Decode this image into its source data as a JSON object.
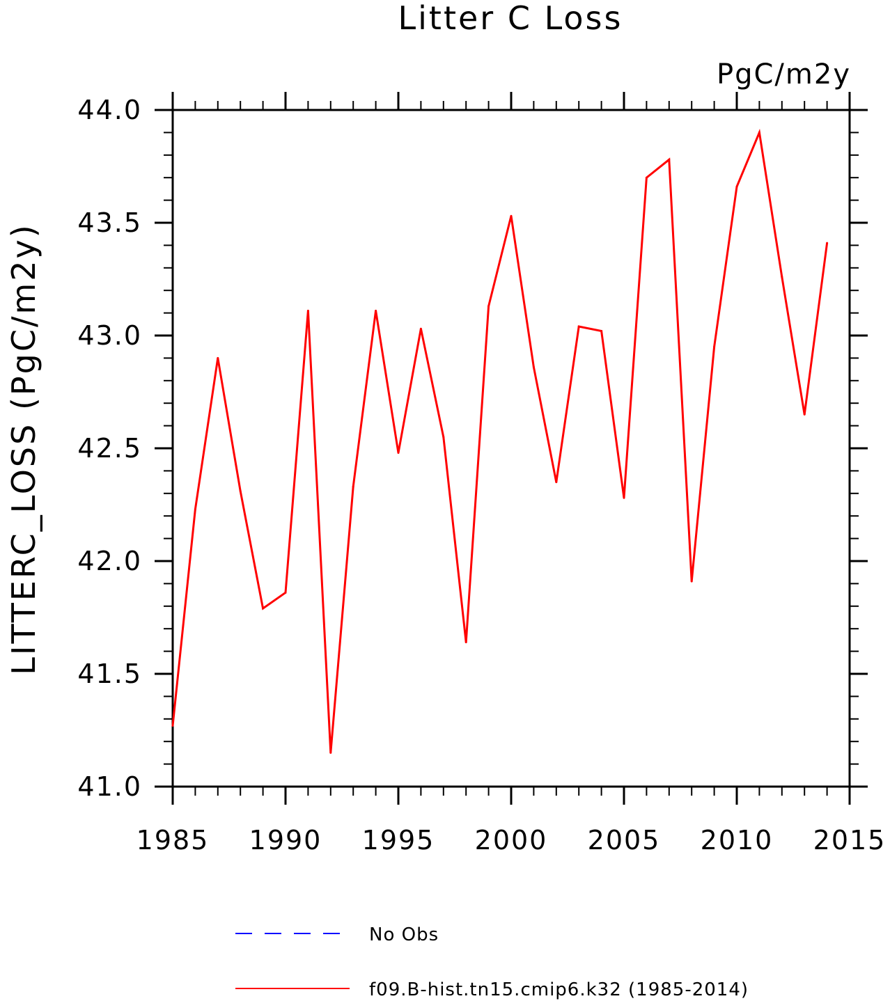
{
  "chart_data": {
    "type": "line",
    "title": "Litter C Loss",
    "units_label": "PgC/m2y",
    "ylabel": "LITTERC_LOSS  (PgC/m2y)",
    "xlabel": "",
    "xlim": [
      1985,
      2015
    ],
    "ylim": [
      41.0,
      44.0
    ],
    "x_ticks": [
      "1985",
      "1990",
      "1995",
      "2000",
      "2005",
      "2010",
      "2015"
    ],
    "y_ticks": [
      "41.0",
      "41.5",
      "42.0",
      "42.5",
      "43.0",
      "43.5",
      "44.0"
    ],
    "x_minor_step": 1,
    "y_minor_step": 0.1,
    "grid": false,
    "legend_position": "bottom",
    "x": [
      1985,
      1986,
      1987,
      1988,
      1989,
      1990,
      1991,
      1992,
      1993,
      1994,
      1995,
      1996,
      1997,
      1998,
      1999,
      2000,
      2001,
      2002,
      2003,
      2004,
      2005,
      2006,
      2007,
      2008,
      2009,
      2010,
      2011,
      2012,
      2013,
      2014
    ],
    "series": [
      {
        "name": "f09.B-hist.tn15.cmip6.k32 (1985-2014)",
        "color": "#ff0000",
        "style": "solid",
        "values": [
          41.27,
          42.23,
          42.9,
          42.31,
          41.79,
          41.86,
          43.11,
          41.15,
          42.33,
          43.11,
          42.48,
          43.03,
          42.55,
          41.64,
          43.13,
          43.53,
          42.86,
          42.35,
          43.04,
          43.02,
          42.28,
          43.7,
          43.78,
          41.91,
          42.95,
          43.66,
          43.9,
          43.26,
          42.65,
          43.41
        ]
      }
    ],
    "legend": [
      {
        "label": "No Obs",
        "color": "#0000ff",
        "style": "dashed"
      },
      {
        "label": "f09.B-hist.tn15.cmip6.k32 (1985-2014)",
        "color": "#ff0000",
        "style": "solid"
      }
    ]
  }
}
